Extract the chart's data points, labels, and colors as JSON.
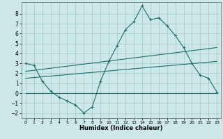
{
  "xlabel": "Humidex (Indice chaleur)",
  "bg_color": "#cce8e8",
  "grid_color": "#aacccc",
  "line_color": "#1a6e6a",
  "xlim": [
    -0.5,
    23.5
  ],
  "ylim": [
    -2.5,
    9.2
  ],
  "yticks": [
    -2,
    -1,
    0,
    1,
    2,
    3,
    4,
    5,
    6,
    7,
    8
  ],
  "xticks": [
    0,
    1,
    2,
    3,
    4,
    5,
    6,
    7,
    8,
    9,
    10,
    11,
    12,
    13,
    14,
    15,
    16,
    17,
    18,
    19,
    20,
    21,
    22,
    23
  ],
  "line1_x": [
    0,
    1,
    2,
    3,
    4,
    5,
    6,
    7,
    8,
    9,
    10,
    11,
    12,
    13,
    14,
    15,
    16,
    17,
    18,
    19,
    20,
    21,
    22,
    23
  ],
  "line1_y": [
    3.0,
    2.8,
    1.2,
    0.2,
    -0.4,
    -0.8,
    -1.2,
    -2.0,
    -1.4,
    1.2,
    3.2,
    4.8,
    6.4,
    7.2,
    8.8,
    7.4,
    7.6,
    6.8,
    5.8,
    4.6,
    3.0,
    1.8,
    1.5,
    0.1
  ],
  "line2_x": [
    0,
    23
  ],
  "line2_y": [
    0.0,
    0.0
  ],
  "line3_x": [
    0,
    23
  ],
  "line3_y": [
    2.2,
    4.6
  ],
  "line4_x": [
    0,
    23
  ],
  "line4_y": [
    1.5,
    3.2
  ]
}
